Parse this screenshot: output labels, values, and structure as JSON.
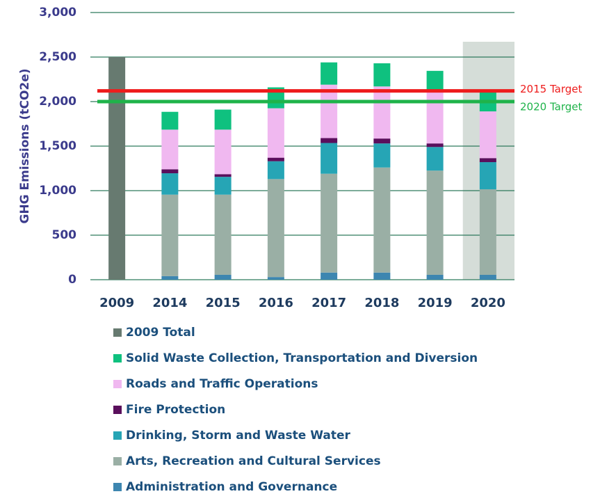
{
  "chart_data": {
    "type": "stacked_bar",
    "y_label": "GHG Emissions (tCO2e)",
    "categories": [
      "2009",
      "2014",
      "2015",
      "2016",
      "2017",
      "2018",
      "2019",
      "2020"
    ],
    "series": [
      {
        "name": "Administration and Governance",
        "color": "#3d86b0",
        "values": [
          null,
          40,
          55,
          30,
          80,
          80,
          55,
          55
        ]
      },
      {
        "name": "Arts, Recreation and Cultural Services",
        "color": "#9aafa5",
        "values": [
          null,
          915,
          900,
          1100,
          1110,
          1180,
          1170,
          960
        ]
      },
      {
        "name": "Drinking, Storm and Waste Water",
        "color": "#26a5b5",
        "values": [
          null,
          240,
          200,
          200,
          345,
          270,
          265,
          305
        ]
      },
      {
        "name": "Fire Protection",
        "color": "#5a0f5c",
        "values": [
          null,
          45,
          30,
          40,
          55,
          55,
          40,
          45
        ]
      },
      {
        "name": "Roads and Traffic Operations",
        "color": "#f0b8f0",
        "values": [
          null,
          445,
          500,
          555,
          600,
          585,
          595,
          525
        ]
      },
      {
        "name": "Solid Waste Collection, Transportation and Diversion",
        "color": "#0fc17f",
        "values": [
          null,
          200,
          225,
          235,
          250,
          260,
          220,
          220
        ]
      },
      {
        "name": "2009 Total",
        "color": "#677a70",
        "values": [
          2500,
          null,
          null,
          null,
          null,
          null,
          null,
          null
        ]
      }
    ],
    "targets": [
      {
        "name": "2015 Target",
        "value": 2120,
        "color": "#ee1c1c"
      },
      {
        "name": "2020 Target",
        "value": 2000,
        "color": "#1fb34a"
      }
    ],
    "highlight": "2020",
    "ylim": [
      0,
      3000
    ],
    "yticks": [
      0,
      500,
      {
        "value": 1000,
        "label": "1,000"
      },
      {
        "value": 1500,
        "label": "1,500"
      },
      {
        "value": 2000,
        "label": "2,000"
      },
      {
        "value": 2500,
        "label": "2,500"
      },
      {
        "value": 3000,
        "label": "3,000"
      }
    ],
    "grid": true
  }
}
